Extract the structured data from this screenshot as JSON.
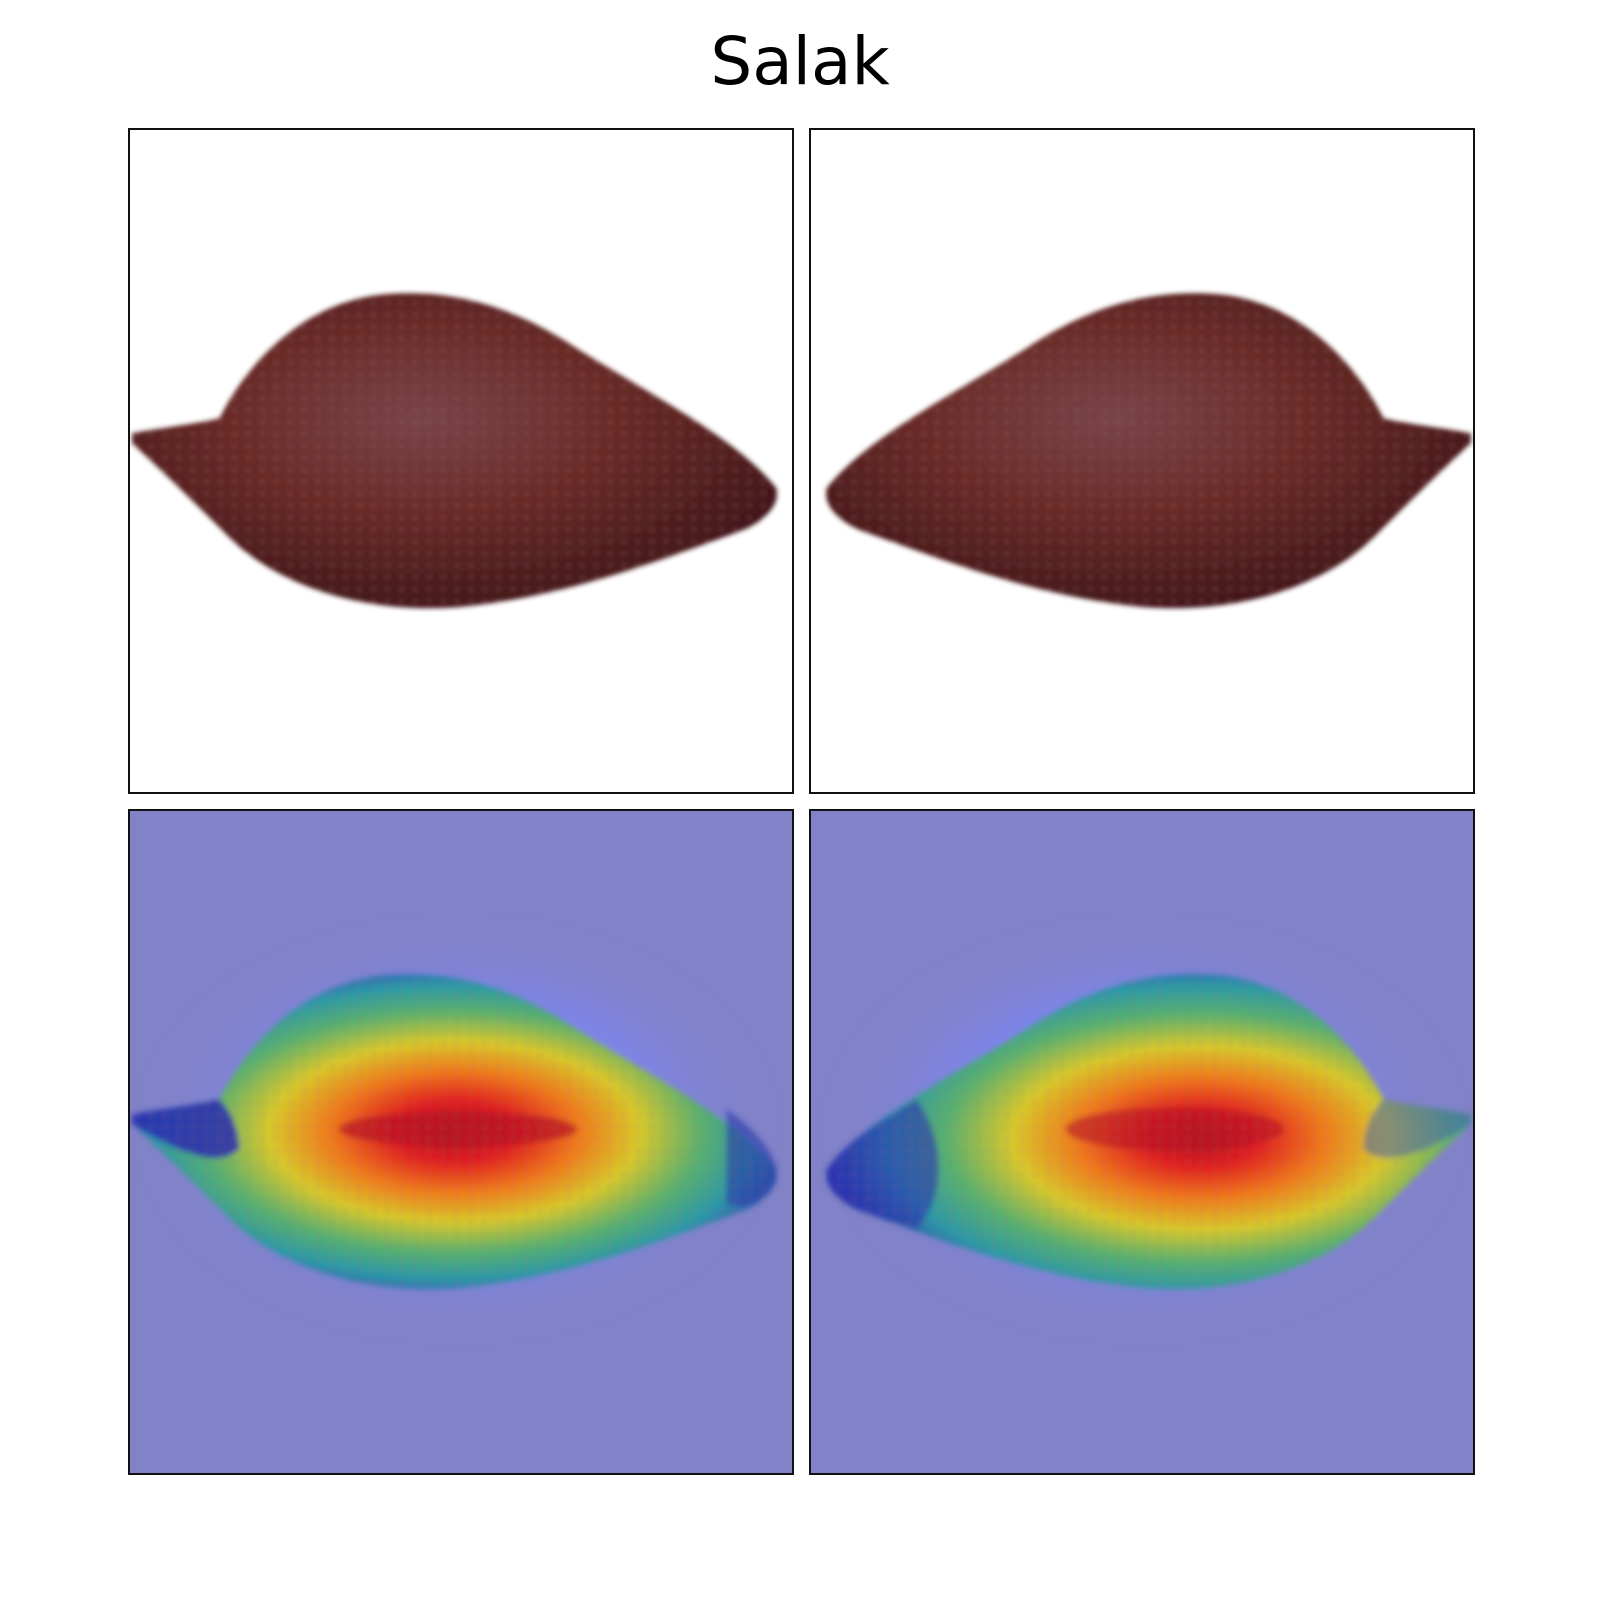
{
  "figure": {
    "title": "Salak",
    "colors": {
      "fruit": "#6a2a26",
      "heatmap_background": "#8282c8",
      "heatmap_hot": "#d81b1b",
      "heatmap_mid": "#e0c02a",
      "heatmap_cool": "#27a8a0"
    },
    "panels": [
      {
        "kind": "photo",
        "fruit": "salak",
        "orientation": "tail-left"
      },
      {
        "kind": "photo",
        "fruit": "salak",
        "orientation": "tail-right"
      },
      {
        "kind": "heatmap-overlay",
        "fruit": "salak",
        "orientation": "tail-left"
      },
      {
        "kind": "heatmap-overlay",
        "fruit": "salak",
        "orientation": "tail-right"
      }
    ]
  }
}
